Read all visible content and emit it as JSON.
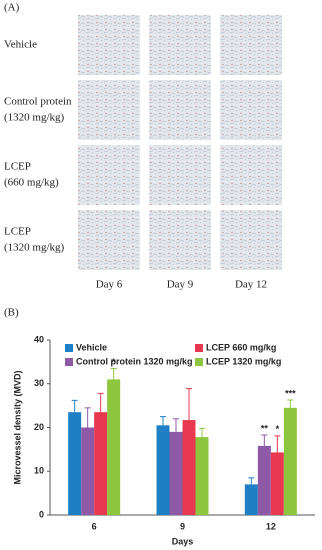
{
  "panel_a": {
    "label": "(A)",
    "row_labels": [
      [
        "Vehicle"
      ],
      [
        "Control protein",
        "(1320 mg/kg)"
      ],
      [
        "LCEP",
        "(660 mg/kg)"
      ],
      [
        "LCEP",
        "(1320 mg/kg)"
      ]
    ],
    "column_labels": [
      "Day 6",
      "Day 9",
      "Day 12"
    ]
  },
  "panel_b_label": "(B)",
  "chart_data": {
    "type": "bar",
    "y_label": "Microvessel density (MVD)",
    "x_label": "Days",
    "categories": [
      "6",
      "9",
      "12"
    ],
    "series": [
      {
        "name": "Vehicle",
        "color": "#1f7fc4",
        "values": [
          23.5,
          20.5,
          7
        ],
        "errors": [
          2.7,
          2,
          1.5
        ]
      },
      {
        "name": "Control protein 1320 mg/kg",
        "color": "#8e5aa8",
        "values": [
          20,
          19,
          15.8
        ],
        "errors": [
          4.5,
          3,
          2.5
        ],
        "annotations": [
          null,
          null,
          "**"
        ]
      },
      {
        "name": "LCEP 660 mg/kg",
        "color": "#e8384f",
        "values": [
          23.5,
          21.7,
          14.3
        ],
        "errors": [
          4.3,
          7.2,
          3.8
        ],
        "annotations": [
          null,
          null,
          "*"
        ]
      },
      {
        "name": "LCEP 1320 mg/kg",
        "color": "#8cc63f",
        "values": [
          31,
          17.8,
          24.5
        ],
        "errors": [
          2.5,
          2,
          1.8
        ],
        "annotations": [
          "*",
          null,
          "***"
        ]
      }
    ],
    "ylim": [
      0,
      40
    ],
    "yticks": [
      0,
      10,
      20,
      30,
      40
    ]
  }
}
